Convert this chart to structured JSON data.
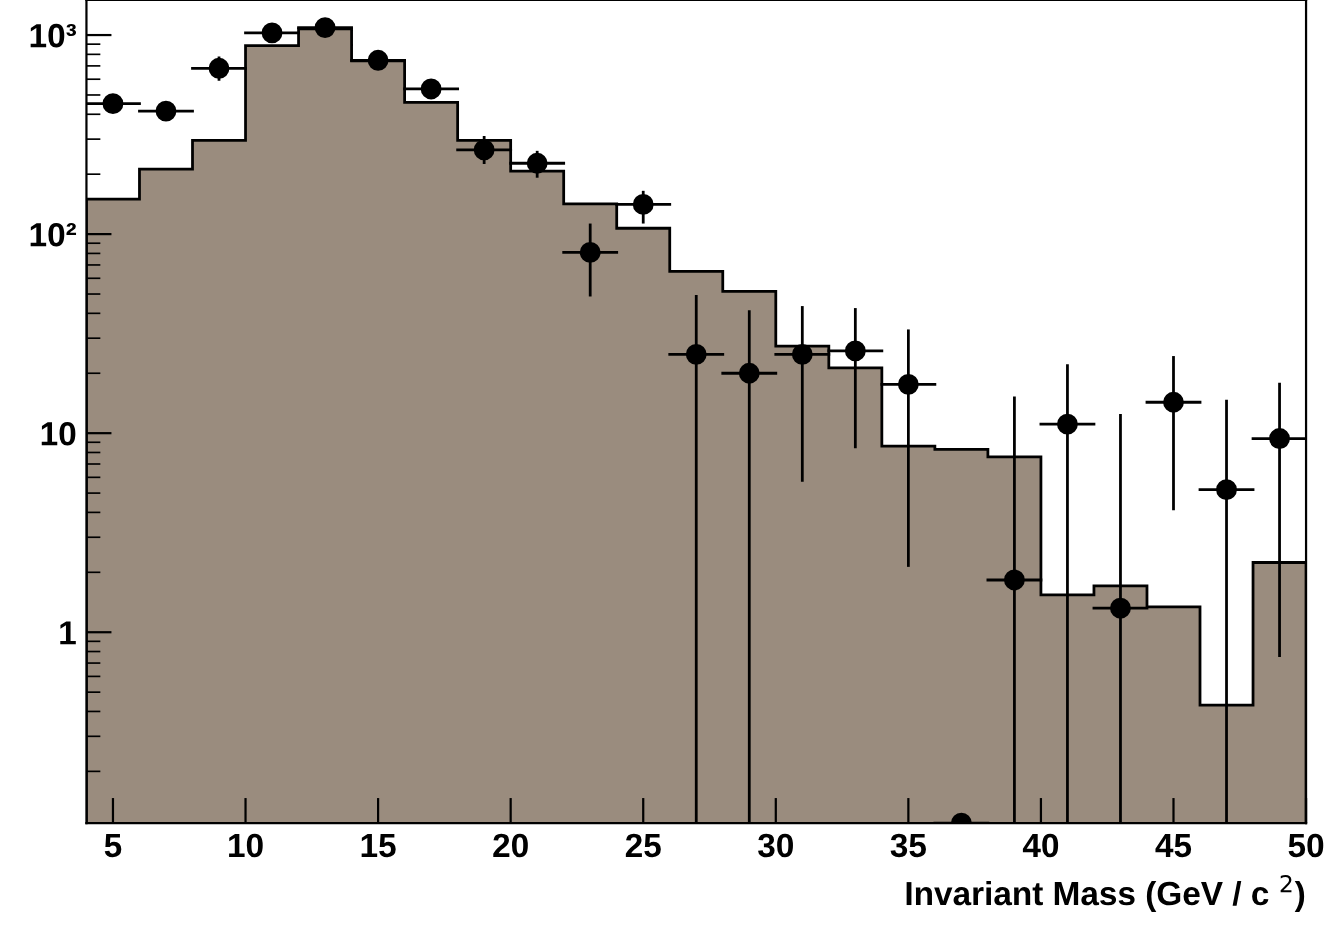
{
  "chart_data": {
    "type": "histogram",
    "xlabel": "Invariant Mass (GeV / c $^{2}$)",
    "log": "y",
    "grid": false,
    "legend": false,
    "xlim": [
      4,
      50
    ],
    "xticks": [
      5,
      10,
      15,
      20,
      25,
      30,
      35,
      40,
      45,
      50
    ],
    "ylim": [
      0.11,
      1500
    ],
    "yticks": [
      {
        "value": 1,
        "label": "1"
      },
      {
        "value": 10,
        "label": "10"
      },
      {
        "value": 100,
        "label": "10²"
      },
      {
        "value": 1000,
        "label": "10³"
      }
    ],
    "series": [
      {
        "type": "histogram",
        "color": "#9a8c7e",
        "bins": [
          4,
          6,
          8,
          10,
          12,
          14,
          16,
          18,
          20,
          22,
          24,
          26,
          28,
          30,
          32,
          34,
          36,
          38,
          40,
          42,
          44,
          46,
          48,
          50
        ],
        "values": [
          150,
          212,
          296,
          886,
          1075,
          741,
          459,
          296,
          207,
          142,
          107,
          65,
          51.5,
          27.4,
          21.3,
          8.6,
          8.3,
          7.6,
          1.54,
          1.71,
          1.34,
          0.43,
          2.24
        ]
      },
      {
        "type": "scatter",
        "color": "#000000",
        "marker": "circle",
        "x": [
          5,
          7,
          9,
          11,
          13,
          15,
          17,
          19,
          21,
          23,
          25,
          27,
          29,
          31,
          33,
          35,
          37,
          39,
          41,
          43,
          45,
          47,
          49
        ],
        "values": [
          452,
          415,
          681,
          1026,
          1090,
          747,
          536,
          265,
          227,
          81,
          141,
          24.9,
          20,
          24.9,
          25.9,
          17.6,
          0.11,
          1.83,
          11.1,
          1.32,
          14.3,
          5.2,
          9.4
        ],
        "errors": [
          null,
          null,
          [
            590,
            780
          ],
          null,
          null,
          null,
          null,
          [
            225,
            311
          ],
          [
            192,
            262
          ],
          [
            48.6,
            113
          ],
          [
            113,
            165
          ],
          [
            0.11,
            49.5
          ],
          [
            0.11,
            41.5
          ],
          [
            5.7,
            43.5
          ],
          [
            8.4,
            42.5
          ],
          [
            2.13,
            33.2
          ],
          null,
          [
            0.11,
            15.3
          ],
          [
            0.11,
            22.2
          ],
          [
            0.11,
            12.5
          ],
          [
            4.1,
            24.4
          ],
          [
            0.11,
            14.7
          ],
          [
            0.75,
            17.9
          ]
        ],
        "xerrors": [
          1,
          1,
          1,
          1,
          1,
          1,
          1,
          1,
          1,
          1,
          1,
          1,
          1,
          1,
          1,
          1,
          1,
          1,
          1,
          1,
          1,
          1,
          1
        ]
      }
    ]
  }
}
